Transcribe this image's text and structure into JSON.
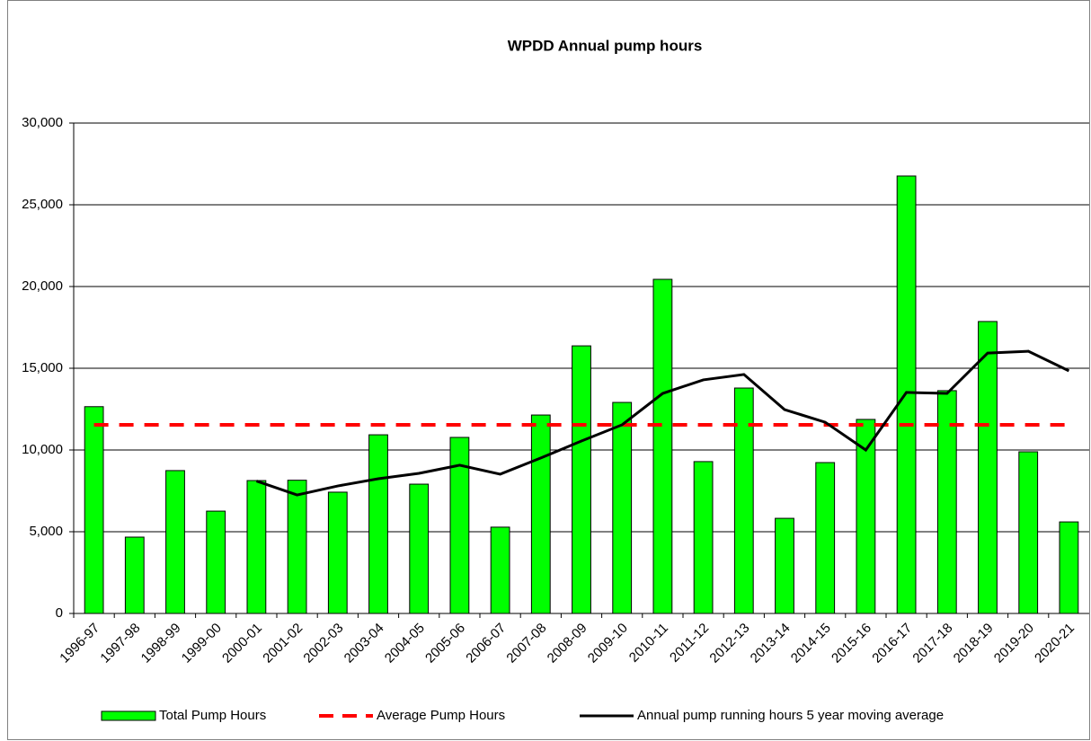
{
  "chart_data": {
    "type": "bar_line",
    "title": "WPDD Annual pump hours",
    "categories": [
      "1996-97",
      "1997-98",
      "1998-99",
      "1999-00",
      "2000-01",
      "2001-02",
      "2002-03",
      "2003-04",
      "2004-05",
      "2005-06",
      "2006-07",
      "2007-08",
      "2008-09",
      "2009-10",
      "2010-11",
      "2011-12",
      "2012-13",
      "2013-14",
      "2014-15",
      "2015-16",
      "2016-17",
      "2017-18",
      "2018-19",
      "2019-20",
      "2020-21"
    ],
    "series": [
      {
        "name": "Total Pump Hours",
        "type": "bar",
        "color": "#00ff00",
        "values": [
          12650,
          4670,
          8740,
          6260,
          8130,
          8150,
          7420,
          10930,
          7910,
          10770,
          5280,
          12140,
          16370,
          12910,
          20440,
          9290,
          13790,
          5820,
          9230,
          11870,
          26760,
          13630,
          17860,
          9890,
          5600
        ]
      },
      {
        "name": "Average Pump Hours",
        "type": "dashed-line",
        "color": "#ff0000",
        "values": [
          11540,
          11540,
          11540,
          11540,
          11540,
          11540,
          11540,
          11540,
          11540,
          11540,
          11540,
          11540,
          11540,
          11540,
          11540,
          11540,
          11540,
          11540,
          11540,
          11540,
          11540,
          11540,
          11540,
          11540,
          11540
        ]
      },
      {
        "name": "Annual pump running hours 5 year moving average",
        "type": "line",
        "color": "#000000",
        "values": [
          null,
          null,
          null,
          null,
          8100,
          7250,
          7800,
          8240,
          8570,
          9070,
          8520,
          9510,
          10550,
          11540,
          13460,
          14290,
          14620,
          12470,
          11700,
          10000,
          13520,
          13460,
          15930,
          16040,
          14840
        ]
      }
    ],
    "ylim": [
      0,
      30000
    ],
    "yticks": [
      0,
      {
        "value": 5000,
        "label": "5,000"
      },
      {
        "value": 10000,
        "label": "10,000"
      },
      {
        "value": 15000,
        "label": "15,000"
      },
      {
        "value": 20000,
        "label": "20,000"
      },
      {
        "value": 25000,
        "label": "25,000"
      },
      {
        "value": 30000,
        "label": "30,000"
      }
    ],
    "grid": true,
    "legend": "bottom"
  }
}
